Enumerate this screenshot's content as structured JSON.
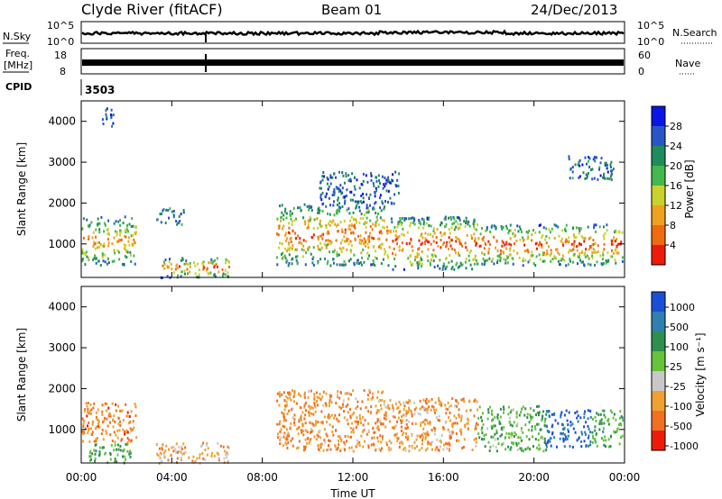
{
  "header": {
    "title": "Clyde River (fitACF)",
    "beam": "Beam 01",
    "date": "24/Dec/2013"
  },
  "aux": {
    "nsky_label": "N.Sky",
    "nsky_ticks": [
      "10^5",
      "10^0"
    ],
    "nsearch_label": "N.Search",
    "nsearch_ticks": [
      "10^5",
      "10^0"
    ],
    "freq_label_1": "Freq.",
    "freq_label_2": "[MHz]",
    "freq_ticks": [
      "18",
      "8"
    ],
    "nave_label": "Nave",
    "nave_ticks": [
      "60",
      "0"
    ],
    "cpid_label": "CPID",
    "cpid_value": "3503"
  },
  "chart_data": [
    {
      "type": "heatmap",
      "name": "power",
      "ylabel": "Slant Range [km]",
      "xlabel": "Time UT",
      "yticks": [
        "1000",
        "2000",
        "3000",
        "4000"
      ],
      "xticks": [
        "00:00",
        "04:00",
        "08:00",
        "12:00",
        "16:00",
        "20:00",
        "00:00"
      ],
      "xlim_hours": [
        0,
        24
      ],
      "ylim_km": [
        180,
        4500
      ],
      "colorbar_label": "Power [dB]",
      "colorbar_ticks": [
        "4",
        "8",
        "12",
        "16",
        "20",
        "24",
        "28"
      ],
      "colorbar_colors": [
        "#0b14e6",
        "#2a55c8",
        "#1f8c5e",
        "#44b84a",
        "#c8d22a",
        "#f0a020",
        "#f06a10",
        "#ee1b0b"
      ],
      "regions": [
        {
          "t0": 0.0,
          "t1": 2.4,
          "r0": 500,
          "r1": 1700,
          "level": 0.75
        },
        {
          "t0": 0.9,
          "t1": 1.4,
          "r0": 3900,
          "r1": 4400,
          "level": 0.2
        },
        {
          "t0": 3.3,
          "t1": 4.5,
          "r0": 1500,
          "r1": 1900,
          "level": 0.25
        },
        {
          "t0": 3.5,
          "t1": 6.7,
          "r0": 200,
          "r1": 700,
          "level": 0.85
        },
        {
          "t0": 8.6,
          "t1": 13.5,
          "r0": 500,
          "r1": 2000,
          "level": 0.9
        },
        {
          "t0": 13.5,
          "t1": 17.5,
          "r0": 400,
          "r1": 1700,
          "level": 0.95
        },
        {
          "t0": 17.5,
          "t1": 23.9,
          "r0": 500,
          "r1": 1500,
          "level": 0.93
        },
        {
          "t0": 10.5,
          "t1": 14.0,
          "r0": 2000,
          "r1": 2800,
          "level": 0.15
        },
        {
          "t0": 21.5,
          "t1": 23.5,
          "r0": 2600,
          "r1": 3200,
          "level": 0.2
        }
      ]
    },
    {
      "type": "heatmap",
      "name": "velocity",
      "ylabel": "Slant Range [km]",
      "xlabel": "Time UT",
      "yticks": [
        "1000",
        "2000",
        "3000",
        "4000"
      ],
      "xticks": [
        "00:00",
        "04:00",
        "08:00",
        "12:00",
        "16:00",
        "20:00",
        "00:00"
      ],
      "xlim_hours": [
        0,
        24
      ],
      "ylim_km": [
        180,
        4500
      ],
      "colorbar_label": "Velocity [m s⁻¹]",
      "colorbar_ticks": [
        "1000",
        "500",
        "100",
        "25",
        "-25",
        "-100",
        "-500",
        "-1000"
      ],
      "colorbar_colors": [
        "#1a4ed8",
        "#2f7fb0",
        "#2e8f4e",
        "#66c23a",
        "#c8c8c8",
        "#f0a030",
        "#f07020",
        "#ee1b0b"
      ],
      "regions": [
        {
          "t0": 0.0,
          "t1": 2.4,
          "r0": 700,
          "r1": 1700,
          "level": -0.6
        },
        {
          "t0": 0.3,
          "t1": 2.2,
          "r0": 200,
          "r1": 700,
          "level": 0.3
        },
        {
          "t0": 3.3,
          "t1": 6.5,
          "r0": 200,
          "r1": 700,
          "level": -0.4
        },
        {
          "t0": 8.6,
          "t1": 13.5,
          "r0": 500,
          "r1": 2000,
          "level": -0.55
        },
        {
          "t0": 13.5,
          "t1": 17.5,
          "r0": 500,
          "r1": 1800,
          "level": -0.5
        },
        {
          "t0": 17.5,
          "t1": 20.5,
          "r0": 500,
          "r1": 1600,
          "level": 0.25
        },
        {
          "t0": 20.5,
          "t1": 22.5,
          "r0": 600,
          "r1": 1500,
          "level": 0.85
        },
        {
          "t0": 22.5,
          "t1": 23.9,
          "r0": 600,
          "r1": 1500,
          "level": 0.3
        }
      ]
    }
  ]
}
